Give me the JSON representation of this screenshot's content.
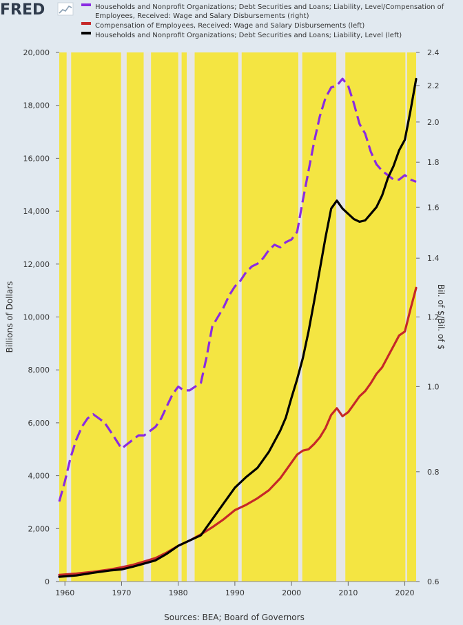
{
  "brand": {
    "logo_text": "FRED",
    "logo_icon": "line-chart-icon"
  },
  "source_note": "Sources: BEA; Board of Governors",
  "colors": {
    "background": "#e1e9f0",
    "plot_band": "#f4e542",
    "recession": "#e6e6e6",
    "series_debt_ratio": "#8a2be2",
    "series_compensation": "#c62828",
    "series_debt": "#000000"
  },
  "chart_data": {
    "type": "line",
    "title": "",
    "x_range": [
      1959,
      2022
    ],
    "x_ticks": [
      1960,
      1970,
      1980,
      1990,
      2000,
      2010,
      2020
    ],
    "x_tick_labels": [
      "1960",
      "1970",
      "1980",
      "1990",
      "2000",
      "2010",
      "2020"
    ],
    "left_axis": {
      "label": "Billions of Dollars",
      "range": [
        0,
        20000
      ],
      "ticks": [
        0,
        2000,
        4000,
        6000,
        8000,
        10000,
        12000,
        14000,
        16000,
        18000,
        20000
      ],
      "tick_labels": [
        "0",
        "2,000",
        "4,000",
        "6,000",
        "8,000",
        "10,000",
        "12,000",
        "14,000",
        "16,000",
        "18,000",
        "20,000"
      ]
    },
    "right_axis": {
      "label": "Bil. of $/Bil. of $",
      "scale": "log",
      "range": [
        0.6,
        2.4
      ],
      "ticks": [
        0.6,
        0.8,
        1.0,
        1.2,
        1.4,
        1.6,
        1.8,
        2.0,
        2.2,
        2.4
      ],
      "tick_labels": [
        "0.6",
        "0.8",
        "1.0",
        "1.2",
        "1.4",
        "1.6",
        "1.8",
        "2.0",
        "2.2",
        "2.4"
      ]
    },
    "grid": false,
    "legend_position": "top",
    "recessions": [
      [
        1960.3,
        1961.1
      ],
      [
        1969.9,
        1970.9
      ],
      [
        1973.9,
        1975.2
      ],
      [
        1980.0,
        1980.6
      ],
      [
        1981.5,
        1982.9
      ],
      [
        1990.6,
        1991.2
      ],
      [
        2001.2,
        2001.9
      ],
      [
        2007.9,
        2009.5
      ],
      [
        2020.1,
        2020.4
      ]
    ],
    "series": [
      {
        "name": "Households and Nonprofit Organizations; Debt Securities and Loans; Liability, Level/Compensation of Employees, Received: Wage and Salary Disbursements (right)",
        "legend_lines": [
          "Households and Nonprofit Organizations; Debt Securities and Loans; Liability, Level/Compensation of",
          "Employees, Received: Wage and Salary Disbursements (right)"
        ],
        "axis": "right",
        "style": "dashed",
        "color": "#8a2be2",
        "x": [
          1959,
          1960,
          1961,
          1962,
          1963,
          1964,
          1965,
          1966,
          1967,
          1968,
          1969,
          1970,
          1971,
          1972,
          1973,
          1974,
          1975,
          1976,
          1977,
          1978,
          1979,
          1980,
          1981,
          1982,
          1983,
          1984,
          1985,
          1986,
          1987,
          1988,
          1989,
          1990,
          1991,
          1992,
          1993,
          1994,
          1995,
          1996,
          1997,
          1998,
          1999,
          2000,
          2001,
          2002,
          2003,
          2004,
          2005,
          2006,
          2007,
          2008,
          2009,
          2010,
          2011,
          2012,
          2013,
          2014,
          2015,
          2016,
          2017,
          2018,
          2019,
          2020,
          2021,
          2022
        ],
        "values": [
          0.74,
          0.78,
          0.83,
          0.87,
          0.9,
          0.92,
          0.93,
          0.92,
          0.91,
          0.89,
          0.87,
          0.85,
          0.86,
          0.87,
          0.88,
          0.88,
          0.89,
          0.9,
          0.92,
          0.95,
          0.98,
          1.0,
          0.99,
          0.99,
          1.0,
          1.01,
          1.08,
          1.17,
          1.2,
          1.23,
          1.27,
          1.3,
          1.32,
          1.35,
          1.37,
          1.38,
          1.4,
          1.43,
          1.45,
          1.44,
          1.46,
          1.47,
          1.5,
          1.63,
          1.76,
          1.9,
          2.03,
          2.13,
          2.19,
          2.2,
          2.24,
          2.2,
          2.1,
          1.99,
          1.94,
          1.85,
          1.79,
          1.76,
          1.74,
          1.72,
          1.72,
          1.74,
          1.72,
          1.71
        ]
      },
      {
        "name": "Compensation of Employees, Received: Wage and Salary Disbursements (left)",
        "legend_lines": [
          "Compensation of Employees, Received: Wage and Salary Disbursements (left)"
        ],
        "axis": "left",
        "style": "solid",
        "color": "#c62828",
        "x": [
          1959,
          1962,
          1965,
          1968,
          1970,
          1972,
          1974,
          1976,
          1978,
          1980,
          1982,
          1984,
          1986,
          1988,
          1990,
          1992,
          1994,
          1996,
          1998,
          2000,
          2001,
          2002,
          2003,
          2004,
          2005,
          2006,
          2007,
          2008,
          2009,
          2010,
          2011,
          2012,
          2013,
          2014,
          2015,
          2016,
          2017,
          2018,
          2019,
          2020,
          2021,
          2022
        ],
        "values": [
          250,
          300,
          370,
          460,
          540,
          630,
          760,
          890,
          1100,
          1350,
          1550,
          1780,
          2050,
          2350,
          2700,
          2900,
          3150,
          3450,
          3900,
          4500,
          4800,
          4950,
          5000,
          5200,
          5450,
          5800,
          6300,
          6550,
          6250,
          6400,
          6700,
          7000,
          7200,
          7500,
          7850,
          8100,
          8500,
          8900,
          9300,
          9450,
          10300,
          11100
        ]
      },
      {
        "name": "Households and Nonprofit Organizations; Debt Securities and Loans; Liability, Level (left)",
        "legend_lines": [
          "Households and Nonprofit Organizations; Debt Securities and Loans; Liability, Level (left)"
        ],
        "axis": "left",
        "style": "solid",
        "color": "#000000",
        "x": [
          1959,
          1962,
          1965,
          1968,
          1970,
          1972,
          1974,
          1976,
          1978,
          1980,
          1982,
          1984,
          1986,
          1988,
          1990,
          1992,
          1994,
          1996,
          1998,
          1999,
          2000,
          2001,
          2002,
          2003,
          2004,
          2005,
          2006,
          2007,
          2008,
          2009,
          2010,
          2011,
          2012,
          2013,
          2014,
          2015,
          2016,
          2017,
          2018,
          2019,
          2020,
          2021,
          2022
        ],
        "values": [
          180,
          230,
          330,
          420,
          460,
          560,
          680,
          800,
          1050,
          1350,
          1550,
          1750,
          2350,
          2950,
          3550,
          3950,
          4300,
          4900,
          5700,
          6200,
          6950,
          7650,
          8450,
          9450,
          10600,
          11800,
          13000,
          14100,
          14400,
          14100,
          13900,
          13700,
          13600,
          13650,
          13900,
          14150,
          14600,
          15250,
          15700,
          16300,
          16700,
          17800,
          19000
        ]
      }
    ]
  }
}
